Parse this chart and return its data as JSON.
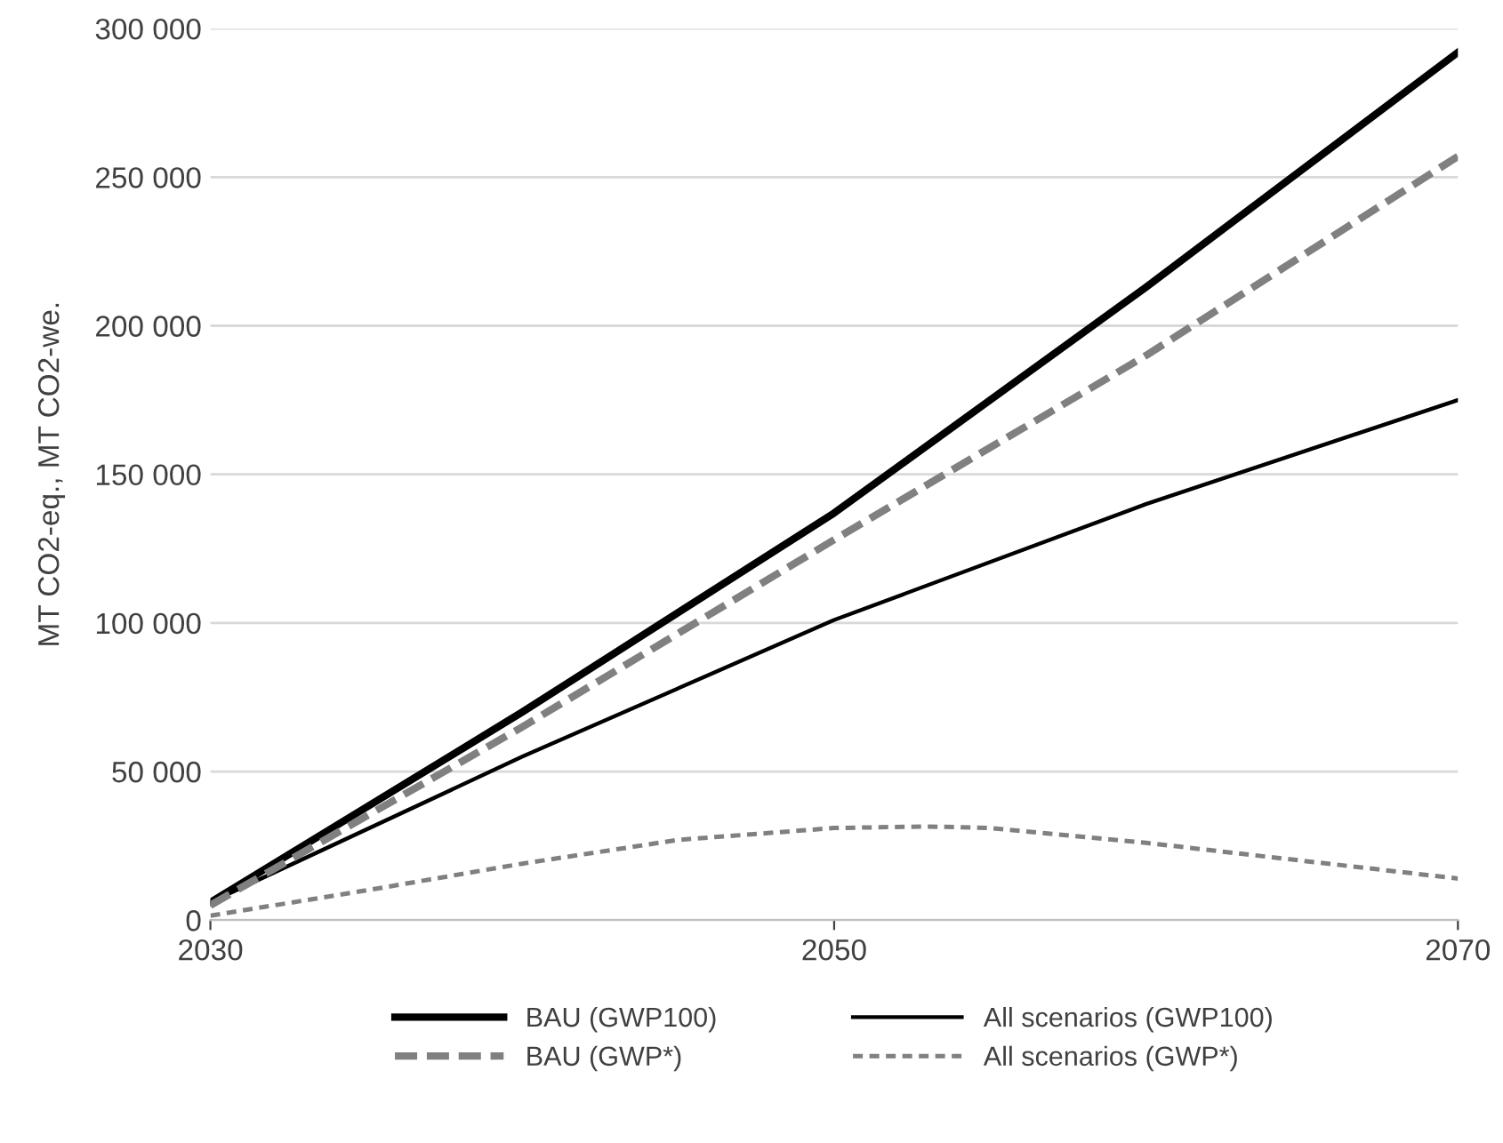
{
  "chart_data": {
    "type": "line",
    "ylabel": "MT CO2-eq., MT CO2-we.",
    "xlim": [
      2030,
      2070
    ],
    "xticks": [
      2030,
      2050,
      2070
    ],
    "ylim": [
      0,
      300000
    ],
    "yticks": [
      {
        "value": 0,
        "label": "0"
      },
      {
        "value": 50000,
        "label": "50 000"
      },
      {
        "value": 100000,
        "label": "100 000"
      },
      {
        "value": 150000,
        "label": "150 000"
      },
      {
        "value": 200000,
        "label": "200 000"
      },
      {
        "value": 250000,
        "label": "250 000"
      },
      {
        "value": 300000,
        "label": "300 000"
      }
    ],
    "grid": "y",
    "legend": "bottom",
    "marker": "none",
    "series": [
      {
        "name": "BAU (GWP100)",
        "color": "#000000",
        "line_style": "solid",
        "x": [
          2030,
          2040,
          2050,
          2060,
          2070
        ],
        "values": [
          6000,
          70000,
          137000,
          213000,
          292000
        ]
      },
      {
        "name": "All scenarios (GWP100)",
        "color": "#000000",
        "line_style": "solid",
        "x": [
          2030,
          2040,
          2050,
          2060,
          2070
        ],
        "values": [
          6000,
          55000,
          101000,
          140000,
          175000
        ]
      },
      {
        "name": "BAU (GWP*)",
        "color": "#808080",
        "line_style": "dashed",
        "x": [
          2030,
          2040,
          2050,
          2060,
          2070
        ],
        "values": [
          5000,
          65000,
          128000,
          190000,
          257000
        ]
      },
      {
        "name": "All scenarios (GWP*)",
        "color": "#808080",
        "line_style": "dashed",
        "x": [
          2030,
          2035,
          2040,
          2045,
          2050,
          2053,
          2055,
          2060,
          2065,
          2070
        ],
        "values": [
          1500,
          10000,
          19000,
          27000,
          31000,
          31500,
          31000,
          26000,
          20000,
          14000
        ]
      }
    ]
  }
}
